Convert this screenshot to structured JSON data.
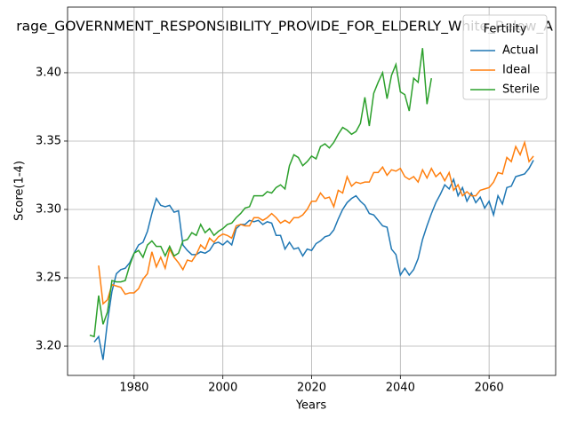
{
  "chart_data": {
    "type": "line",
    "title": "rage_GOVERNMENT_RESPONSIBILITY_PROVIDE_FOR_ELDERLY_White_Below_A",
    "xlabel": "Years",
    "ylabel": "Score(1-4)",
    "x": [
      1970,
      1971,
      1972,
      1973,
      1974,
      1975,
      1976,
      1977,
      1978,
      1979,
      1980,
      1981,
      1982,
      1983,
      1984,
      1985,
      1986,
      1987,
      1988,
      1989,
      1990,
      1991,
      1992,
      1993,
      1994,
      1995,
      1996,
      1997,
      1998,
      1999,
      2000,
      2001,
      2002,
      2003,
      2004,
      2005,
      2006,
      2007,
      2008,
      2009,
      2010,
      2011,
      2012,
      2013,
      2014,
      2015,
      2016,
      2017,
      2018,
      2019,
      2020,
      2021,
      2022,
      2023,
      2024,
      2025,
      2026,
      2027,
      2028,
      2029,
      2030,
      2031,
      2032,
      2033,
      2034,
      2035,
      2036,
      2037,
      2038,
      2039,
      2040,
      2041,
      2042,
      2043,
      2044,
      2045,
      2046,
      2047,
      2048,
      2049,
      2050,
      2051,
      2052,
      2053,
      2054,
      2055,
      2056,
      2057,
      2058,
      2059,
      2060,
      2061,
      2062,
      2063,
      2064,
      2065,
      2066,
      2067,
      2068,
      2069,
      2070
    ],
    "series": [
      {
        "name": "Actual",
        "color": "#1f77b4",
        "values": [
          null,
          3.203,
          3.207,
          3.19,
          3.218,
          3.24,
          3.253,
          3.256,
          3.257,
          3.261,
          3.268,
          3.274,
          3.276,
          3.284,
          3.297,
          3.308,
          3.303,
          3.302,
          3.303,
          3.298,
          3.299,
          3.274,
          3.27,
          3.267,
          3.267,
          3.269,
          3.268,
          3.27,
          3.275,
          3.276,
          3.274,
          3.277,
          3.274,
          3.286,
          3.289,
          3.289,
          3.292,
          3.291,
          3.292,
          3.289,
          3.291,
          3.29,
          3.281,
          3.281,
          3.271,
          3.276,
          3.271,
          3.272,
          3.266,
          3.271,
          3.27,
          3.275,
          3.277,
          3.28,
          3.281,
          3.285,
          3.293,
          3.3,
          3.305,
          3.308,
          3.31,
          3.306,
          3.303,
          3.297,
          3.296,
          3.292,
          3.288,
          3.287,
          3.271,
          3.267,
          3.252,
          3.257,
          3.252,
          3.256,
          3.264,
          3.278,
          3.288,
          3.297,
          3.305,
          3.311,
          3.318,
          3.315,
          3.322,
          3.31,
          3.316,
          3.306,
          3.312,
          3.305,
          3.309,
          3.301,
          3.306,
          3.296,
          3.31,
          3.304,
          3.316,
          3.317,
          3.324,
          3.325,
          3.326,
          3.33,
          3.336
        ]
      },
      {
        "name": "Ideal",
        "color": "#ff7f0e",
        "values": [
          null,
          null,
          3.259,
          3.231,
          3.234,
          3.245,
          3.244,
          3.243,
          3.238,
          3.239,
          3.239,
          3.242,
          3.249,
          3.253,
          3.269,
          3.258,
          3.265,
          3.257,
          3.271,
          3.265,
          3.261,
          3.256,
          3.263,
          3.262,
          3.267,
          3.274,
          3.271,
          3.279,
          3.276,
          3.28,
          3.282,
          3.281,
          3.279,
          3.288,
          3.289,
          3.288,
          3.288,
          3.294,
          3.294,
          3.292,
          3.294,
          3.297,
          3.294,
          3.29,
          3.292,
          3.29,
          3.294,
          3.294,
          3.296,
          3.3,
          3.306,
          3.306,
          3.312,
          3.308,
          3.309,
          3.302,
          3.314,
          3.312,
          3.324,
          3.317,
          3.32,
          3.319,
          3.32,
          3.32,
          3.327,
          3.327,
          3.331,
          3.325,
          3.329,
          3.328,
          3.33,
          3.324,
          3.322,
          3.324,
          3.32,
          3.329,
          3.323,
          3.33,
          3.324,
          3.327,
          3.321,
          3.327,
          3.314,
          3.318,
          3.31,
          3.313,
          3.31,
          3.31,
          3.314,
          3.315,
          3.316,
          3.32,
          3.327,
          3.326,
          3.338,
          3.335,
          3.346,
          3.34,
          3.349,
          3.335,
          3.339
        ]
      },
      {
        "name": "Sterile",
        "color": "#2ca02c",
        "values": [
          3.208,
          3.207,
          3.237,
          3.216,
          3.225,
          3.248,
          3.247,
          3.247,
          3.248,
          3.259,
          3.268,
          3.27,
          3.265,
          3.274,
          3.277,
          3.273,
          3.273,
          3.266,
          3.273,
          3.266,
          3.268,
          3.277,
          3.278,
          3.283,
          3.281,
          3.289,
          3.283,
          3.286,
          3.281,
          3.284,
          3.286,
          3.289,
          3.29,
          3.294,
          3.297,
          3.301,
          3.302,
          3.31,
          3.31,
          3.31,
          3.313,
          3.312,
          3.316,
          3.318,
          3.315,
          3.332,
          3.34,
          3.338,
          3.332,
          3.335,
          3.339,
          3.337,
          3.346,
          3.348,
          3.345,
          3.349,
          3.355,
          3.36,
          3.358,
          3.355,
          3.357,
          3.363,
          3.382,
          3.361,
          3.385,
          3.393,
          3.4,
          3.381,
          3.398,
          3.406,
          3.386,
          3.384,
          3.372,
          3.396,
          3.393,
          3.418,
          3.377,
          3.396,
          null,
          null,
          null,
          null,
          null,
          null,
          null,
          null,
          null,
          null,
          null,
          null,
          null,
          null,
          null,
          null,
          null,
          null,
          null,
          null,
          null,
          null,
          null
        ]
      }
    ],
    "xlim": [
      1965,
      2075
    ],
    "ylim": [
      3.1786,
      3.448
    ],
    "xticks": [
      1980,
      2000,
      2020,
      2040,
      2060
    ],
    "yticks": [
      {
        "value": 3.2,
        "label": "3.20"
      },
      {
        "value": 3.25,
        "label": "3.25"
      },
      {
        "value": 3.3,
        "label": "3.30"
      },
      {
        "value": 3.35,
        "label": "3.35"
      },
      {
        "value": 3.4,
        "label": "3.40"
      }
    ],
    "grid": true,
    "legend_title": "Fertility",
    "legend_loc": "upper right"
  }
}
